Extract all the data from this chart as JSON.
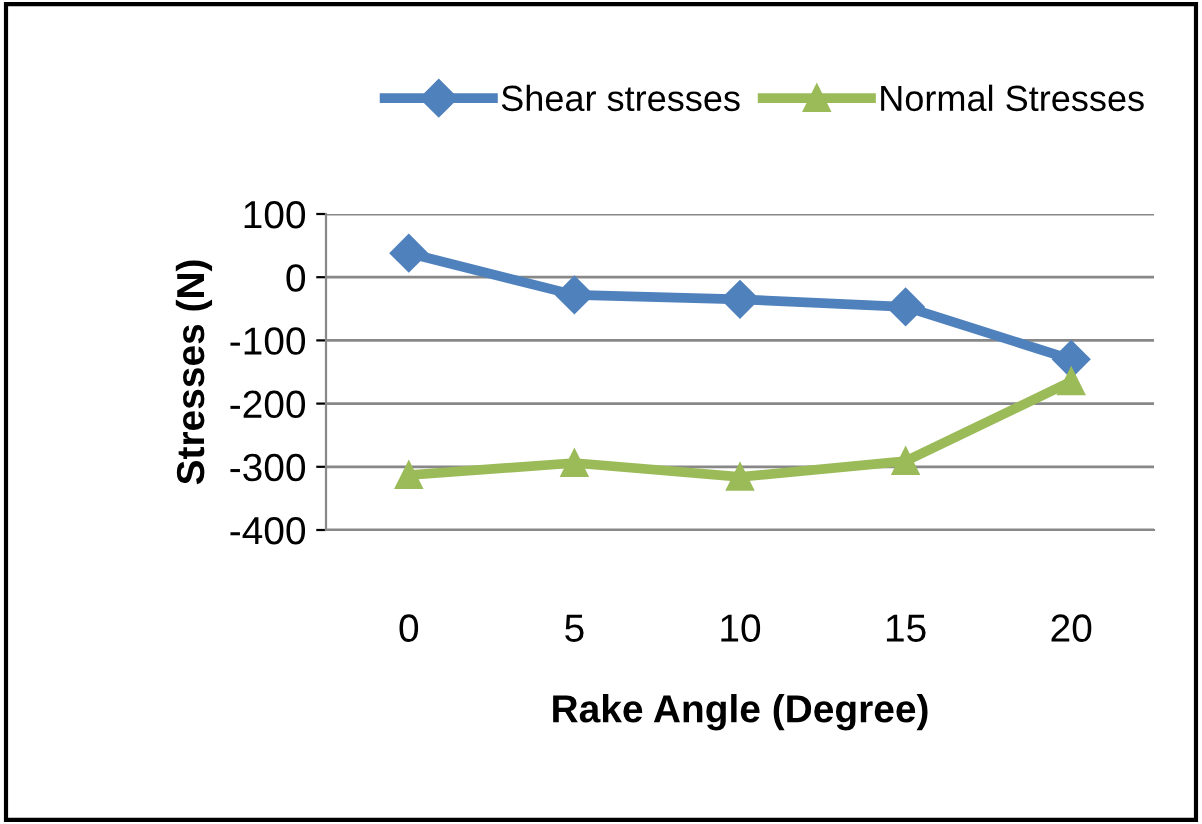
{
  "chart_data": {
    "type": "line",
    "xlabel": "Rake Angle (Degree)",
    "ylabel": "Stresses (N)",
    "categories": [
      "0",
      "5",
      "10",
      "15",
      "20"
    ],
    "series": [
      {
        "name": "Shear stresses",
        "color": "#4f81bd",
        "marker": "diamond",
        "values": [
          38,
          -28,
          -35,
          -47,
          -130
        ]
      },
      {
        "name": "Normal Stresses",
        "color": "#9bbb59",
        "marker": "triangle",
        "values": [
          -313,
          -294,
          -316,
          -291,
          -165
        ]
      }
    ],
    "ylim": [
      -400,
      100
    ],
    "yticks": [
      -400,
      -300,
      -200,
      -100,
      0,
      100
    ],
    "grid": "y",
    "legend": "top"
  }
}
